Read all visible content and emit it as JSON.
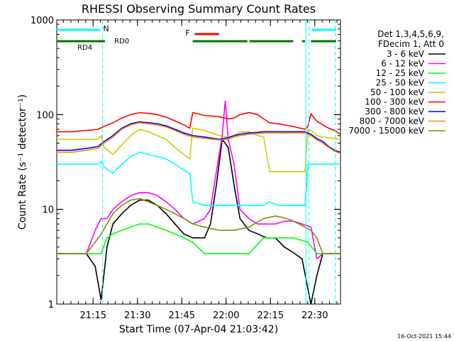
{
  "chart_data": {
    "type": "line",
    "title": "RHESSI Observing Summary Count Rates",
    "xlabel": "Start Time (07-Apr-04 21:03:42)",
    "ylabel": "Count Rate (s⁻¹ detector⁻¹)",
    "yscale": "log",
    "ylim": [
      1,
      1000
    ],
    "xlim_min": [
      0,
      96
    ],
    "y_ticks": [
      "1",
      "10",
      "100",
      "1000"
    ],
    "x_ticks": [
      {
        "min": 12.3,
        "label": "21:15"
      },
      {
        "min": 27.3,
        "label": "21:30"
      },
      {
        "min": 42.3,
        "label": "21:45"
      },
      {
        "min": 57.3,
        "label": "22:00"
      },
      {
        "min": 72.3,
        "label": "22:15"
      },
      {
        "min": 87.3,
        "label": "22:30"
      }
    ],
    "footer": "16-Oct-2021 15:44",
    "legend_header": [
      "Det 1,3,4,5,6,9,",
      "FDecim 1, Att 0"
    ],
    "series": [
      {
        "name": "3 - 6 keV",
        "color": "#000000",
        "x": [
          0,
          5,
          10,
          13,
          15,
          17,
          19,
          22,
          25,
          28,
          31,
          34,
          37,
          40,
          43,
          46,
          50,
          52,
          54,
          56,
          58,
          60,
          62,
          65,
          68,
          71,
          74,
          77,
          80,
          83,
          86,
          88,
          90,
          92,
          94,
          96
        ],
        "y": [
          3.4,
          3.4,
          3.4,
          2.5,
          1.1,
          4,
          7,
          9,
          11,
          12.5,
          12.5,
          11,
          9,
          7,
          5.5,
          5,
          5,
          7,
          18,
          55,
          45,
          18,
          8,
          6,
          5.5,
          5,
          5,
          4,
          3.5,
          3,
          1,
          2,
          3.4,
          3.4,
          3.4,
          3.4
        ]
      },
      {
        "name": "6 - 12 keV",
        "color": "#ff00ff",
        "x": [
          0,
          5,
          10,
          13,
          15,
          17,
          19,
          22,
          25,
          28,
          31,
          34,
          37,
          40,
          43,
          46,
          50,
          52,
          54,
          56,
          57,
          58,
          60,
          62,
          65,
          68,
          71,
          74,
          77,
          80,
          83,
          86,
          88,
          90,
          92,
          94,
          96
        ],
        "y": [
          3.4,
          3.4,
          3.4,
          6,
          8,
          8,
          10,
          12,
          14,
          15,
          15,
          14,
          12,
          10,
          8,
          7,
          8,
          10,
          25,
          60,
          140,
          55,
          30,
          10,
          8,
          7,
          7,
          7,
          7.5,
          7.5,
          7,
          6.5,
          3,
          3.4,
          3.4,
          3.4,
          3.4
        ]
      },
      {
        "name": "12 - 25 keV",
        "color": "#00ff00",
        "x": [
          0,
          5,
          10,
          13,
          15,
          17,
          19,
          22,
          25,
          28,
          31,
          34,
          37,
          40,
          43,
          46,
          50,
          55,
          60,
          65,
          70,
          75,
          80,
          85,
          88,
          90,
          92,
          94,
          96
        ],
        "y": [
          3.4,
          3.4,
          3.4,
          3.4,
          3.4,
          5,
          5.5,
          6,
          6.5,
          7,
          7,
          6.5,
          6,
          5.5,
          5,
          4.5,
          3.4,
          3.4,
          3.4,
          3.4,
          5,
          5,
          5,
          4.5,
          3.4,
          3.4,
          3.4,
          3.4,
          3.4
        ]
      },
      {
        "name": "25 - 50 keV",
        "color": "#00ffff",
        "x": [
          0,
          5,
          10,
          14,
          15,
          16,
          19,
          22,
          25,
          28,
          31,
          34,
          37,
          40,
          43,
          45,
          46,
          50,
          55,
          60,
          65,
          70,
          72,
          75,
          80,
          84,
          85,
          88,
          90,
          92,
          94,
          96
        ],
        "y": [
          30,
          30,
          30,
          30,
          32,
          28,
          24,
          30,
          36,
          40,
          38,
          36,
          34,
          30,
          26,
          24,
          12,
          11,
          11,
          11,
          11,
          11,
          12,
          11,
          11,
          11,
          30,
          30,
          30,
          30,
          30,
          30
        ]
      },
      {
        "name": "50 - 100 keV",
        "color": "#cccc00",
        "x": [
          0,
          5,
          10,
          14,
          15,
          16,
          19,
          22,
          25,
          28,
          31,
          34,
          37,
          40,
          43,
          45,
          46,
          50,
          55,
          58,
          60,
          62,
          65,
          68,
          70,
          72,
          75,
          80,
          84,
          85,
          86,
          88,
          90,
          92,
          94,
          96
        ],
        "y": [
          55,
          55,
          55,
          55,
          60,
          45,
          38,
          48,
          60,
          70,
          66,
          60,
          55,
          45,
          38,
          34,
          72,
          68,
          60,
          58,
          60,
          65,
          66,
          60,
          58,
          25,
          25,
          25,
          25,
          70,
          68,
          60,
          58,
          57,
          56,
          55
        ]
      },
      {
        "name": "100 - 300 keV",
        "color": "#ff0000",
        "x": [
          0,
          5,
          10,
          14,
          16,
          19,
          22,
          25,
          28,
          31,
          34,
          37,
          40,
          43,
          45,
          46,
          50,
          55,
          58,
          60,
          62,
          65,
          68,
          70,
          72,
          75,
          80,
          84,
          85,
          86,
          88,
          90,
          92,
          94,
          96
        ],
        "y": [
          66,
          66,
          68,
          70,
          75,
          82,
          92,
          100,
          105,
          103,
          100,
          94,
          86,
          78,
          72,
          105,
          98,
          95,
          90,
          92,
          100,
          105,
          100,
          90,
          82,
          80,
          75,
          70,
          75,
          102,
          85,
          78,
          72,
          68,
          62
        ]
      },
      {
        "name": "300 - 800 keV",
        "color": "#0000ff",
        "x": [
          0,
          5,
          10,
          14,
          16,
          19,
          22,
          25,
          28,
          31,
          34,
          37,
          40,
          43,
          46,
          50,
          55,
          58,
          60,
          62,
          65,
          68,
          70,
          72,
          75,
          80,
          84,
          86,
          88,
          90,
          92,
          94,
          96
        ],
        "y": [
          42,
          42,
          44,
          46,
          52,
          60,
          72,
          80,
          84,
          82,
          80,
          76,
          70,
          64,
          60,
          58,
          55,
          57,
          60,
          62,
          64,
          65,
          66,
          66,
          66,
          66,
          66,
          62,
          56,
          52,
          46,
          42,
          40
        ]
      },
      {
        "name": "800 - 7000 keV",
        "color": "#ff8800",
        "x": [
          0,
          5,
          10,
          14,
          16,
          19,
          22,
          25,
          28,
          31,
          34,
          37,
          40,
          43,
          46,
          50,
          55,
          58,
          60,
          62,
          65,
          68,
          70,
          72,
          75,
          80,
          84,
          86,
          88,
          90,
          92,
          94,
          96
        ],
        "y": [
          40,
          40,
          42,
          44,
          50,
          58,
          70,
          78,
          82,
          80,
          78,
          74,
          68,
          62,
          58,
          56,
          54,
          55,
          58,
          60,
          62,
          63,
          64,
          64,
          64,
          64,
          64,
          60,
          54,
          50,
          45,
          41,
          39
        ]
      },
      {
        "name": "7000 - 15000 keV",
        "color": "#888800",
        "x": [
          0,
          5,
          10,
          13,
          15,
          17,
          19,
          22,
          25,
          28,
          31,
          34,
          37,
          40,
          43,
          46,
          50,
          55,
          60,
          65,
          70,
          74,
          78,
          82,
          86,
          88,
          90,
          92,
          94,
          96
        ],
        "y": [
          3.4,
          3.4,
          3.4,
          4.5,
          5.5,
          7,
          9,
          11,
          12.5,
          13,
          12,
          11,
          10,
          9,
          8,
          7,
          6.5,
          6,
          6,
          6.5,
          8,
          8.5,
          8,
          7,
          6,
          5,
          3.4,
          3.4,
          3.4,
          3.4
        ]
      }
    ],
    "state_bars": [
      {
        "label": "N",
        "color": "#00ffff",
        "segments": [
          [
            0,
            14.8
          ],
          [
            86.2,
            94.5
          ]
        ]
      },
      {
        "label": "",
        "color": "#007700",
        "segments": [
          [
            0,
            16.3
          ],
          [
            46,
            64.5
          ],
          [
            65.2,
            80
          ],
          [
            83,
            84
          ],
          [
            86,
            94.5
          ]
        ]
      },
      {
        "label": "F",
        "color": "#ff0000",
        "segments": [
          [
            46.7,
            54.9
          ]
        ]
      }
    ],
    "annotations": [
      {
        "text": "RD4",
        "min": 9.5
      },
      {
        "text": "RD0",
        "min": 22
      }
    ],
    "vlines": [
      {
        "min": 15.5,
        "style": "dashed",
        "color": "#00ffff"
      },
      {
        "min": 84.3,
        "style": "solid",
        "color": "#00ffff"
      },
      {
        "min": 85.3,
        "style": "dashed",
        "color": "#00ffff"
      },
      {
        "min": 94.2,
        "style": "dashed",
        "color": "#00ffff"
      }
    ]
  }
}
